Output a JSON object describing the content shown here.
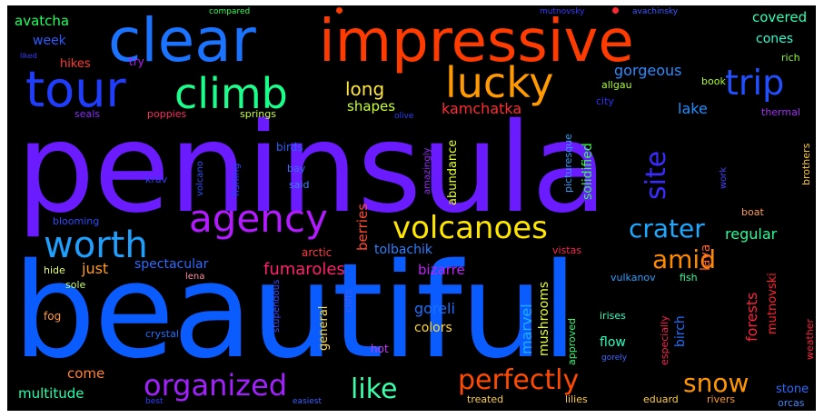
{
  "words": [
    {
      "text": "peninsula",
      "color": "#6a1bff"
    },
    {
      "text": "beautiful",
      "color": "#0a5cff"
    },
    {
      "text": "impressive",
      "color": "#ff3b00"
    },
    {
      "text": "clear",
      "color": "#1a74ff"
    },
    {
      "text": "tour",
      "color": "#1f3dff"
    },
    {
      "text": "climb",
      "color": "#1aff8c"
    },
    {
      "text": "lucky",
      "color": "#ff9a00"
    },
    {
      "text": "trip",
      "color": "#2050ff"
    },
    {
      "text": "agency",
      "color": "#b21bff"
    },
    {
      "text": "worth",
      "color": "#1ea0ff"
    },
    {
      "text": "volcanoes",
      "color": "#ffe600"
    },
    {
      "text": "crater",
      "color": "#1ea8ff"
    },
    {
      "text": "site",
      "color": "#3a2bff"
    },
    {
      "text": "amid",
      "color": "#ff8a00"
    },
    {
      "text": "organized",
      "color": "#a320ff"
    },
    {
      "text": "like",
      "color": "#3affaa"
    },
    {
      "text": "perfectly",
      "color": "#ff4a00"
    },
    {
      "text": "snow",
      "color": "#ff9600"
    },
    {
      "text": "long",
      "color": "#ffe640"
    },
    {
      "text": "kamchatka",
      "color": "#ff2a30"
    },
    {
      "text": "gorgeous",
      "color": "#2a8cff"
    },
    {
      "text": "lake",
      "color": "#1a90ff"
    },
    {
      "text": "shapes",
      "color": "#c8ff2a"
    },
    {
      "text": "fumaroles",
      "color": "#ff2070"
    },
    {
      "text": "spectacular",
      "color": "#2a6cff"
    },
    {
      "text": "just",
      "color": "#ff9a20"
    },
    {
      "text": "regular",
      "color": "#22ff9a"
    },
    {
      "text": "tolbachik",
      "color": "#2a80ff"
    },
    {
      "text": "bizarre",
      "color": "#c41cff"
    },
    {
      "text": "goreli",
      "color": "#1a70ff"
    },
    {
      "text": "marvel",
      "color": "#1ab0ff"
    },
    {
      "text": "colors",
      "color": "#ffd92a"
    },
    {
      "text": "mushrooms",
      "color": "#e7ff2a"
    },
    {
      "text": "multitude",
      "color": "#22ffb0"
    },
    {
      "text": "come",
      "color": "#ff8030"
    },
    {
      "text": "flow",
      "color": "#2affc0"
    },
    {
      "text": "covered",
      "color": "#2affb8"
    },
    {
      "text": "cones",
      "color": "#2affd0"
    },
    {
      "text": "avatcha",
      "color": "#20ff60"
    },
    {
      "text": "week",
      "color": "#2a5cff"
    },
    {
      "text": "hikes",
      "color": "#ff3a30"
    },
    {
      "text": "try",
      "color": "#b81cff"
    },
    {
      "text": "rich",
      "color": "#8aff30"
    },
    {
      "text": "book",
      "color": "#a8ff20"
    },
    {
      "text": "allgau",
      "color": "#a8ff20"
    },
    {
      "text": "city",
      "color": "#2a30ff"
    },
    {
      "text": "thermal",
      "color": "#a82aff"
    },
    {
      "text": "brothers",
      "color": "#ffcc20"
    },
    {
      "text": "poppies",
      "color": "#ff2a60"
    },
    {
      "text": "seals",
      "color": "#8a2aff"
    },
    {
      "text": "springs",
      "color": "#c8ff2a"
    },
    {
      "text": "berries",
      "color": "#ff4a30"
    },
    {
      "text": "abundance",
      "color": "#e7ff2a"
    },
    {
      "text": "solidified",
      "color": "#30ff40"
    },
    {
      "text": "picturesque",
      "color": "#2aa0ff"
    },
    {
      "text": "amazingly",
      "color": "#9a2aff"
    },
    {
      "text": "volcano",
      "color": "#2a50ff"
    },
    {
      "text": "fishing",
      "color": "#2a40ff"
    },
    {
      "text": "birds",
      "color": "#2a60ff"
    },
    {
      "text": "bay",
      "color": "#3a6aff"
    },
    {
      "text": "said",
      "color": "#3a80ff"
    },
    {
      "text": "krav",
      "color": "#3a3aff"
    },
    {
      "text": "work",
      "color": "#4a40ff"
    },
    {
      "text": "lava",
      "color": "#ff6030"
    },
    {
      "text": "forests",
      "color": "#ff2040"
    },
    {
      "text": "birch",
      "color": "#1a70ff"
    },
    {
      "text": "mutnovski",
      "color": "#ff2030"
    },
    {
      "text": "weather",
      "color": "#ff2040"
    },
    {
      "text": "especially",
      "color": "#ff2050"
    },
    {
      "text": "blooming",
      "color": "#2a4aff"
    },
    {
      "text": "boat",
      "color": "#ff9a50"
    },
    {
      "text": "arctic",
      "color": "#ff3a40"
    },
    {
      "text": "vistas",
      "color": "#ff2050"
    },
    {
      "text": "hide",
      "color": "#e7ff6a"
    },
    {
      "text": "lena",
      "color": "#ff8aa0"
    },
    {
      "text": "sole",
      "color": "#c8ff6a"
    },
    {
      "text": "vulkanov",
      "color": "#2aa0ff"
    },
    {
      "text": "fish",
      "color": "#2affa0"
    },
    {
      "text": "fog",
      "color": "#ff9a40"
    },
    {
      "text": "crystal",
      "color": "#1a70ff"
    },
    {
      "text": "stupendous",
      "color": "#3a4aff"
    },
    {
      "text": "cliffs",
      "color": "#3a5aff"
    },
    {
      "text": "general",
      "color": "#ffe040"
    },
    {
      "text": "irises",
      "color": "#2affc0"
    },
    {
      "text": "approved",
      "color": "#2aff70"
    },
    {
      "text": "hot",
      "color": "#c83aff"
    },
    {
      "text": "gorely",
      "color": "#3a6aff"
    },
    {
      "text": "stone",
      "color": "#2a6cff"
    },
    {
      "text": "orcas",
      "color": "#3a8aff"
    },
    {
      "text": "rivers",
      "color": "#ff9a20"
    },
    {
      "text": "eduard",
      "color": "#ffd040"
    },
    {
      "text": "lilies",
      "color": "#ffd040"
    },
    {
      "text": "treated",
      "color": "#ffd040"
    },
    {
      "text": "easiest",
      "color": "#3a60ff"
    },
    {
      "text": "best",
      "color": "#2a40ff"
    },
    {
      "text": "compared",
      "color": "#30ff50"
    },
    {
      "text": "mutnovsky",
      "color": "#3a3aff"
    },
    {
      "text": "avachinsky",
      "color": "#3a5aff"
    },
    {
      "text": "liked",
      "color": "#3a3aff"
    },
    {
      "text": "olive",
      "color": "#2a40ff"
    }
  ],
  "dots": [
    {
      "color": "#ff3b00"
    },
    {
      "color": "#ff2a30"
    }
  ]
}
